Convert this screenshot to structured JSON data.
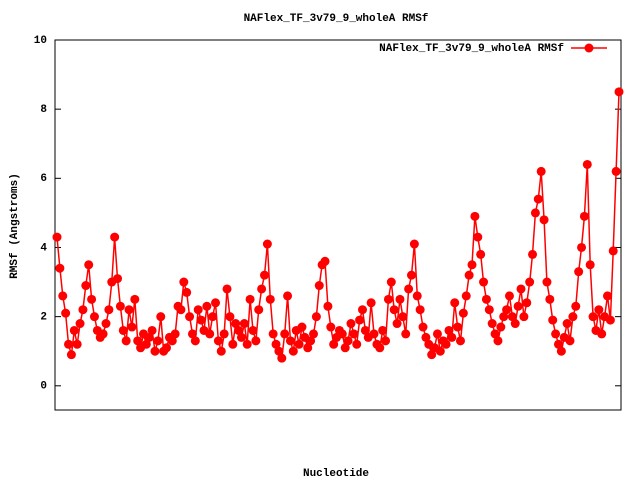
{
  "chart_data": {
    "type": "line",
    "title": "NAFlex_TF_3v79_9_wholeA RMSf",
    "x_label": "Nucleotide",
    "y_label": "RMSf (Angstroms)",
    "legend_position": "top-right",
    "series": [
      {
        "name": "NAFlex_TF_3v79_9_wholeA RMSf",
        "color": "#ff0000",
        "values": [
          4.3,
          3.4,
          2.6,
          2.1,
          1.2,
          0.9,
          1.6,
          1.2,
          1.8,
          2.2,
          2.9,
          3.5,
          2.5,
          2.0,
          1.6,
          1.4,
          1.5,
          1.8,
          2.2,
          3.0,
          4.3,
          3.1,
          2.3,
          1.6,
          1.3,
          2.2,
          1.7,
          2.5,
          1.3,
          1.1,
          1.5,
          1.2,
          1.4,
          1.6,
          1.0,
          1.3,
          2.0,
          1.0,
          1.1,
          1.4,
          1.3,
          1.5,
          2.3,
          2.2,
          3.0,
          2.7,
          2.0,
          1.5,
          1.3,
          2.2,
          1.9,
          1.6,
          2.3,
          1.5,
          2.0,
          2.4,
          1.3,
          1.0,
          1.5,
          2.8,
          2.0,
          1.2,
          1.8,
          1.6,
          1.4,
          1.8,
          1.2,
          2.5,
          1.6,
          1.3,
          2.2,
          2.8,
          3.2,
          4.1,
          2.5,
          1.5,
          1.2,
          1.0,
          0.8,
          1.5,
          2.6,
          1.3,
          1.0,
          1.6,
          1.2,
          1.7,
          1.4,
          1.1,
          1.3,
          1.5,
          2.0,
          2.9,
          3.5,
          3.6,
          2.3,
          1.7,
          1.2,
          1.4,
          1.6,
          1.5,
          1.1,
          1.3,
          1.8,
          1.5,
          1.2,
          1.9,
          2.2,
          1.6,
          1.4,
          2.4,
          1.5,
          1.2,
          1.1,
          1.6,
          1.3,
          2.5,
          3.0,
          2.2,
          1.8,
          2.5,
          2.0,
          1.5,
          2.8,
          3.2,
          4.1,
          2.6,
          2.2,
          1.7,
          1.4,
          1.2,
          0.9,
          1.1,
          1.5,
          1.0,
          1.3,
          1.2,
          1.6,
          1.4,
          2.4,
          1.7,
          1.3,
          2.1,
          2.6,
          3.2,
          3.5,
          4.9,
          4.3,
          3.8,
          3.0,
          2.5,
          2.2,
          1.8,
          1.5,
          1.3,
          1.7,
          2.0,
          2.2,
          2.6,
          2.0,
          1.8,
          2.3,
          2.8,
          2.0,
          2.4,
          3.0,
          3.8,
          5.0,
          5.4,
          6.2,
          4.8,
          3.0,
          2.5,
          1.9,
          1.5,
          1.2,
          1.0,
          1.4,
          1.8,
          1.3,
          2.0,
          2.3,
          3.3,
          4.0,
          4.9,
          6.4,
          3.5,
          2.0,
          1.6,
          2.2,
          1.5,
          2.0,
          2.6,
          1.9,
          3.9,
          6.2,
          8.5
        ]
      }
    ],
    "ylim": [
      -0.7,
      10
    ],
    "yticks": [
      0,
      2,
      4,
      6,
      8,
      10
    ]
  }
}
